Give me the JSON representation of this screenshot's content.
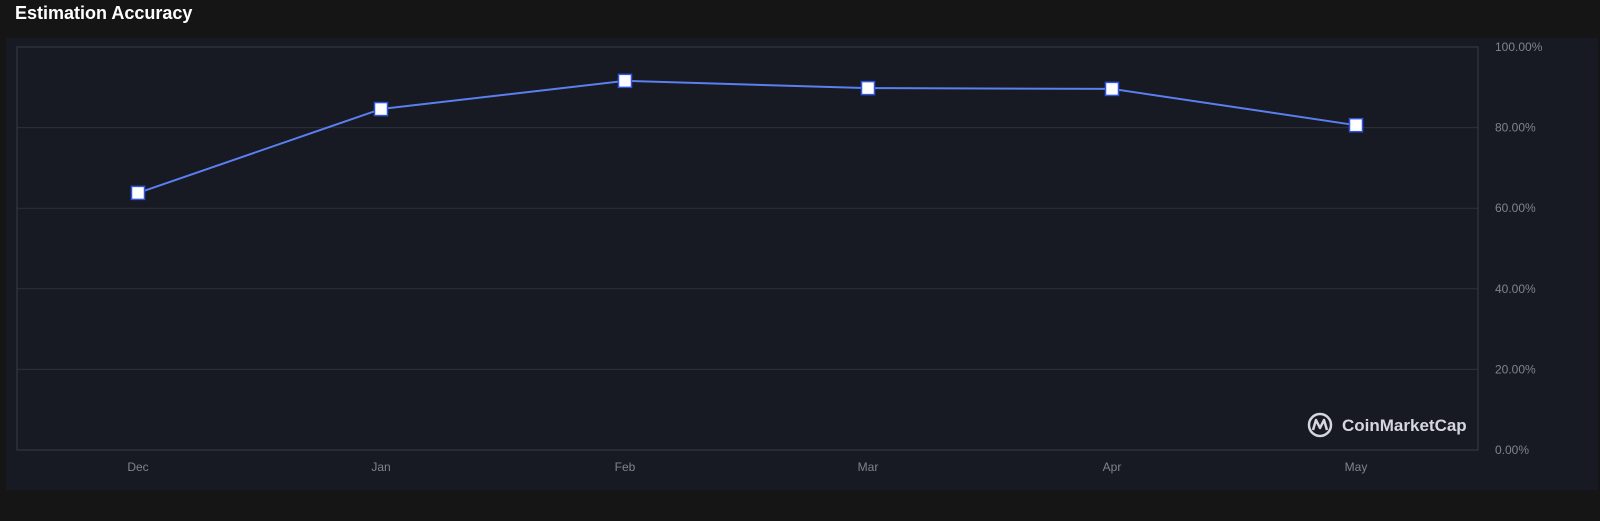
{
  "chart_data": {
    "type": "line",
    "title": "Estimation Accuracy",
    "categories": [
      "Dec",
      "Jan",
      "Feb",
      "Mar",
      "Apr",
      "May"
    ],
    "series": [
      {
        "name": "Estimation Accuracy",
        "values": [
          63.8,
          84.6,
          91.6,
          89.8,
          89.6,
          80.6
        ]
      }
    ],
    "ylim": [
      0,
      100
    ],
    "yticks": [
      "0.00%",
      "20.00%",
      "40.00%",
      "60.00%",
      "80.00%",
      "100.00%"
    ],
    "ytick_values": [
      0,
      20,
      40,
      60,
      80,
      100
    ],
    "y_axis_position": "right",
    "grid": true,
    "line_color": "#5b7ff0",
    "watermark": "CoinMarketCap"
  }
}
